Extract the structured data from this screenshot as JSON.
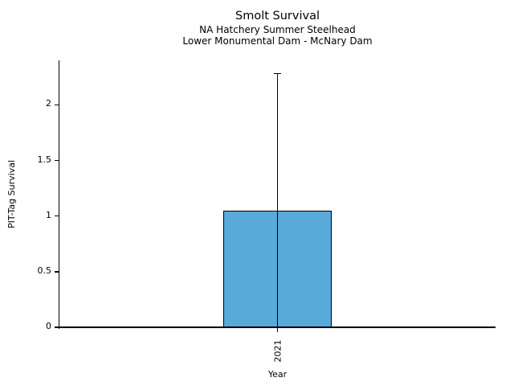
{
  "chart_data": {
    "type": "bar",
    "title": "Smolt Survival",
    "subtitle1": "NA Hatchery Summer Steelhead",
    "subtitle2": "Lower Monumental Dam - McNary Dam",
    "xlabel": "Year",
    "ylabel": "PIT-Tag Survival",
    "categories": [
      "2021"
    ],
    "values": [
      1.05
    ],
    "error_upper": [
      2.28
    ],
    "error_lower": [
      0
    ],
    "ylim": [
      0,
      2.4
    ],
    "yticks": [
      0,
      0.5,
      1,
      1.5,
      2
    ],
    "ytick_labels": [
      "0",
      "0.5",
      "1",
      "1.5",
      "2"
    ],
    "xtick_rotation_deg": 90,
    "grid": false,
    "legend": null,
    "bar_color": "#58ABD9",
    "bar_edge_color": "#000000",
    "errorbar_color": "#000000",
    "axis_color": "#000000",
    "text_color": "#000000",
    "background_color": "#FFFFFF"
  }
}
